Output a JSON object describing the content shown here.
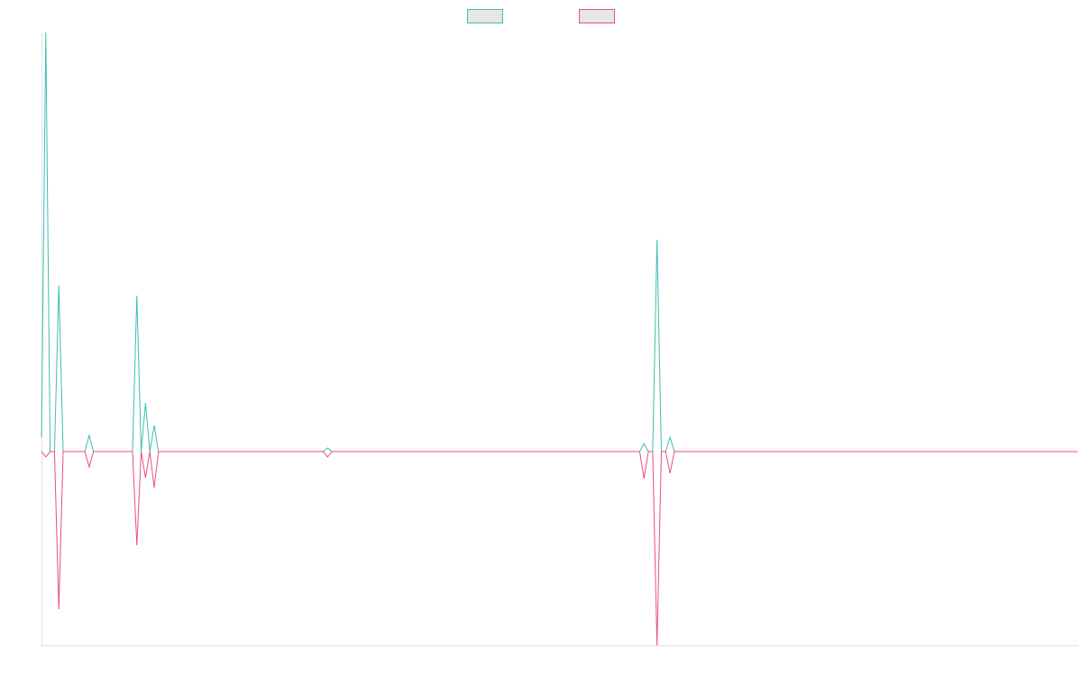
{
  "chart_data": {
    "type": "line",
    "series": [
      {
        "color": "#3dbfb0",
        "values": [
          3.2,
          93,
          0,
          0,
          36.8,
          0,
          0,
          0,
          0,
          0,
          0,
          3.6,
          0,
          0,
          0,
          0,
          0,
          0,
          0,
          0,
          0,
          0,
          34.6,
          0,
          10.8,
          0,
          5.8,
          0,
          0,
          0,
          0,
          0,
          0,
          0,
          0,
          0,
          0,
          0,
          0,
          0,
          0,
          0,
          0,
          0,
          0,
          0,
          0,
          0,
          0,
          0,
          0,
          0,
          0,
          0,
          0,
          0,
          0,
          0,
          0,
          0,
          0,
          0,
          0,
          0,
          0,
          0,
          0.8,
          0,
          0,
          0,
          0,
          0,
          0,
          0,
          0,
          0,
          0,
          0,
          0,
          0,
          0,
          0,
          0,
          0,
          0,
          0,
          0,
          0,
          0,
          0,
          0,
          0,
          0,
          0,
          0,
          0,
          0,
          0,
          0,
          0,
          0,
          0,
          0,
          0,
          0,
          0,
          0,
          0,
          0,
          0,
          0,
          0,
          0,
          0,
          0,
          0,
          0,
          0,
          0,
          0,
          0,
          0,
          0,
          0,
          0,
          0,
          0,
          0,
          0,
          0,
          0,
          0,
          0,
          0,
          0,
          0,
          0,
          0,
          0,
          1.8,
          0,
          0,
          47,
          0,
          0,
          3.2,
          0,
          0,
          0,
          0,
          0,
          0,
          0,
          0,
          0,
          0,
          0,
          0,
          0,
          0,
          0,
          0,
          0,
          0,
          0,
          0,
          0,
          0,
          0,
          0,
          0,
          0,
          0,
          0,
          0,
          0,
          0,
          0,
          0,
          0,
          0,
          0,
          0,
          0,
          0,
          0,
          0,
          0,
          0,
          0,
          0,
          0,
          0,
          0,
          0,
          0,
          0,
          0,
          0,
          0,
          0,
          0,
          0,
          0,
          0,
          0,
          0,
          0,
          0,
          0,
          0,
          0,
          0,
          0,
          0,
          0,
          0,
          0,
          0,
          0,
          0,
          0,
          0,
          0,
          0,
          0,
          0,
          0,
          0,
          0,
          0,
          0,
          0,
          0,
          0,
          0,
          0,
          0,
          0,
          0
        ]
      },
      {
        "color": "#e8507a",
        "values": [
          0,
          -1.2,
          0,
          0,
          -35,
          0,
          0,
          0,
          0,
          0,
          0,
          -3.4,
          0,
          0,
          0,
          0,
          0,
          0,
          0,
          0,
          0,
          0,
          -20.8,
          0,
          -5.8,
          0,
          -8,
          0,
          0,
          0,
          0,
          0,
          0,
          0,
          0,
          0,
          0,
          0,
          0,
          0,
          0,
          0,
          0,
          0,
          0,
          0,
          0,
          0,
          0,
          0,
          0,
          0,
          0,
          0,
          0,
          0,
          0,
          0,
          0,
          0,
          0,
          0,
          0,
          0,
          0,
          0,
          -1.2,
          0,
          0,
          0,
          0,
          0,
          0,
          0,
          0,
          0,
          0,
          0,
          0,
          0,
          0,
          0,
          0,
          0,
          0,
          0,
          0,
          0,
          0,
          0,
          0,
          0,
          0,
          0,
          0,
          0,
          0,
          0,
          0,
          0,
          0,
          0,
          0,
          0,
          0,
          0,
          0,
          0,
          0,
          0,
          0,
          0,
          0,
          0,
          0,
          0,
          0,
          0,
          0,
          0,
          0,
          0,
          0,
          0,
          0,
          0,
          0,
          0,
          0,
          0,
          0,
          0,
          0,
          0,
          0,
          0,
          0,
          0,
          0,
          -6,
          0,
          0,
          -43,
          0,
          0,
          -4.8,
          0,
          0,
          0,
          0,
          0,
          0,
          0,
          0,
          0,
          0,
          0,
          0,
          0,
          0,
          0,
          0,
          0,
          0,
          0,
          0,
          0,
          0,
          0,
          0,
          0,
          0,
          0,
          0,
          0,
          0,
          0,
          0,
          0,
          0,
          0,
          0,
          0,
          0,
          0,
          0,
          0,
          0,
          0,
          0,
          0,
          0,
          0,
          0,
          0,
          0,
          0,
          0,
          0,
          0,
          0,
          0,
          0,
          0,
          0,
          0,
          0,
          0,
          0,
          0,
          0,
          0,
          0,
          0,
          0,
          0,
          0,
          0,
          0,
          0,
          0,
          0,
          0,
          0,
          0,
          0,
          0,
          0,
          0,
          0,
          0,
          0,
          0,
          0,
          0,
          0,
          0,
          0,
          0,
          0
        ]
      }
    ],
    "ylim": [
      -43,
      93
    ],
    "legend": "top"
  }
}
